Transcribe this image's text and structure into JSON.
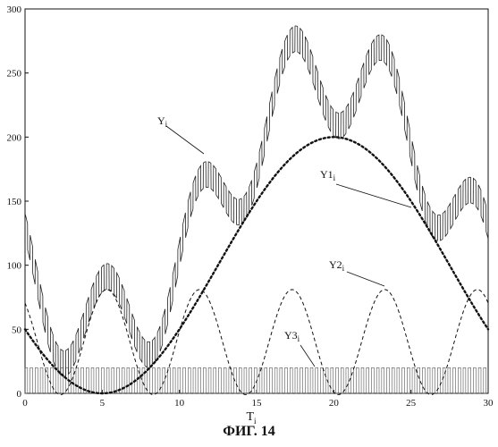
{
  "caption": "ФИГ. 14",
  "chart_data": {
    "type": "line",
    "xlabel": {
      "main": "T",
      "sub": "i"
    },
    "xlim": [
      0,
      30
    ],
    "ylim": [
      0,
      300
    ],
    "x_ticks": [
      0,
      5,
      10,
      15,
      20,
      25,
      30
    ],
    "y_ticks": [
      0,
      50,
      100,
      150,
      200,
      250,
      300
    ],
    "grid": false,
    "legend": "inline annotations with leader lines",
    "series": [
      {
        "name": {
          "main": "Y",
          "sub": "i"
        },
        "style": "solid",
        "description_points": {
          "x": [
            0,
            2,
            5.3,
            8,
            11.3,
            14,
            17.3,
            20,
            23.3,
            26,
            29.3
          ],
          "y": [
            130,
            25,
            95,
            70,
            185,
            155,
            285,
            215,
            265,
            130,
            150
          ]
        }
      },
      {
        "name": {
          "main": "Y1",
          "sub": "i"
        },
        "style": "dotted",
        "y_offset": 100,
        "amplitude": 100,
        "period": 30,
        "min_at": 5,
        "x": [
          0,
          5,
          10,
          15,
          20,
          25,
          30
        ],
        "y": [
          38,
          0,
          43,
          145,
          200,
          150,
          44
        ]
      },
      {
        "name": {
          "main": "Y2",
          "sub": "i"
        },
        "style": "dashed",
        "y_offset": 40,
        "amplitude": 41,
        "period": 6,
        "max_at": 5.3,
        "x": [
          2.3,
          5.3,
          8.3,
          11.3,
          14.3,
          17.3,
          20.3,
          23.3,
          26.3,
          29.3
        ],
        "y": [
          0,
          81,
          0,
          81,
          0,
          81,
          0,
          81,
          0,
          81
        ]
      },
      {
        "name": {
          "main": "Y3",
          "sub": "i"
        },
        "style": "square-wave",
        "high": 20,
        "low": 0,
        "period": 0.33
      }
    ]
  }
}
